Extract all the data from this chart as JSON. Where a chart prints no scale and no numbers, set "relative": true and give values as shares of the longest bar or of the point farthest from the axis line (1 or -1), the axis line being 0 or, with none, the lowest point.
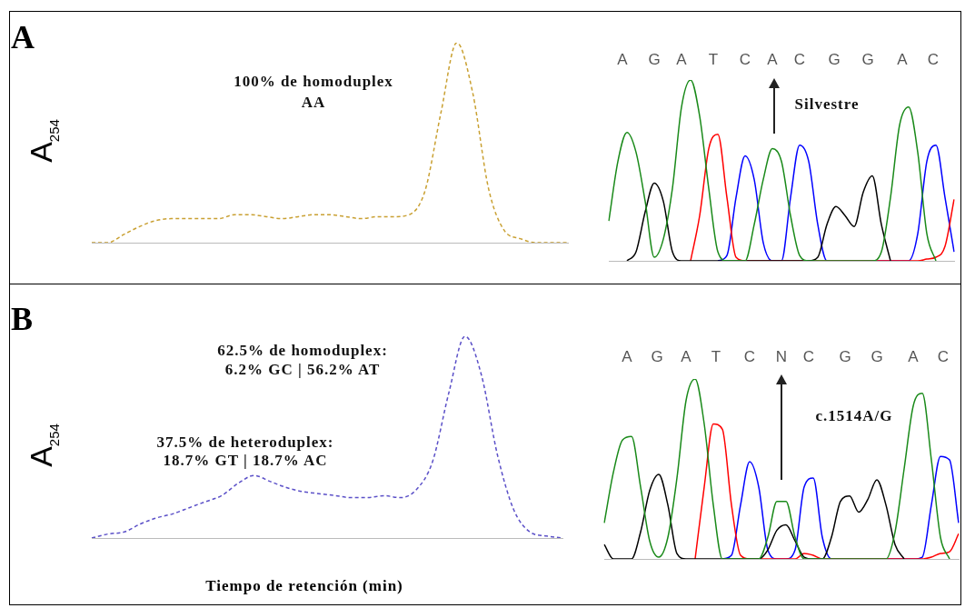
{
  "chart_data": [
    {
      "type": "line",
      "relative": true,
      "legend": false,
      "grid": false,
      "tick_labels": false,
      "marker": "none",
      "line_style": "dashed",
      "ylabel": "A$_{254}$",
      "annotations": [
        "A",
        "100% de homoduplex",
        "AA"
      ],
      "categories": [
        null,
        null,
        null,
        null,
        null,
        null,
        null,
        null,
        null,
        null,
        null,
        null,
        null,
        null,
        null,
        null,
        null,
        null,
        null,
        null,
        null,
        null,
        null,
        null,
        null,
        null,
        null,
        null,
        null,
        null,
        null
      ],
      "series": [
        {
          "color": "#c9a032",
          "values": [
            0,
            0,
            0.04,
            0.08,
            0.11,
            0.12,
            0.12,
            0.12,
            0.12,
            0.14,
            0.14,
            0.13,
            0.12,
            0.13,
            0.14,
            0.14,
            0.13,
            0.12,
            0.13,
            0.13,
            0.14,
            0.26,
            0.65,
            1,
            0.75,
            0.27,
            0.06,
            0.02,
            0,
            0,
            0
          ]
        }
      ]
    },
    {
      "type": "line",
      "relative": true,
      "legend": false,
      "grid": false,
      "tick_labels": false,
      "marker": "none",
      "line_style": "solid",
      "annotations": [
        "A",
        "G",
        "A",
        "T",
        "C",
        "A",
        "C",
        "G",
        "G",
        "A",
        "C",
        "Silvestre"
      ],
      "categories": [
        null,
        null,
        null,
        null,
        null,
        null,
        null,
        null,
        null,
        null,
        null,
        null,
        null,
        null,
        null,
        null,
        null,
        null,
        null,
        null,
        null,
        null,
        null,
        null,
        null,
        null,
        null,
        null,
        null,
        null,
        null,
        null,
        null,
        null,
        null,
        null,
        null,
        null,
        null
      ],
      "series": [
        {
          "color": "#1a8a1a",
          "values": [
            0.22,
            0.55,
            0.71,
            0.6,
            0.33,
            0.02,
            0.12,
            0.4,
            0.85,
            1,
            0.8,
            0.4,
            0.05,
            0,
            null,
            0,
            0.2,
            0.45,
            0.62,
            0.55,
            0.25,
            0.03,
            0,
            null,
            null,
            null,
            null,
            null,
            null,
            0,
            0.05,
            0.35,
            0.75,
            0.85,
            0.6,
            0.15,
            0,
            null,
            null
          ]
        },
        {
          "color": "#000000",
          "values": [
            null,
            null,
            0,
            0.05,
            0.27,
            0.43,
            0.33,
            0.05,
            0,
            null,
            null,
            null,
            null,
            null,
            null,
            null,
            null,
            null,
            null,
            null,
            null,
            null,
            0,
            0.02,
            0.2,
            0.3,
            0.25,
            0.19,
            0.38,
            0.47,
            0.2,
            0,
            null,
            null,
            null,
            null,
            null,
            null,
            null
          ]
        },
        {
          "color": "#ff0000",
          "values": [
            null,
            null,
            null,
            null,
            null,
            null,
            null,
            null,
            null,
            0,
            0.25,
            0.62,
            0.7,
            0.35,
            0.02,
            0,
            null,
            null,
            null,
            null,
            null,
            null,
            null,
            null,
            null,
            null,
            null,
            null,
            null,
            null,
            null,
            null,
            null,
            null,
            0,
            0.01,
            0.02,
            0.08,
            0.34
          ]
        },
        {
          "color": "#0000ff",
          "values": [
            null,
            null,
            null,
            null,
            null,
            null,
            null,
            null,
            null,
            null,
            null,
            null,
            0,
            0.03,
            0.35,
            0.58,
            0.45,
            0.1,
            0,
            0,
            0.35,
            0.64,
            0.55,
            0.2,
            0,
            null,
            null,
            null,
            null,
            null,
            null,
            null,
            null,
            0,
            0.15,
            0.55,
            0.64,
            0.35,
            0.05
          ]
        }
      ]
    },
    {
      "type": "line",
      "relative": true,
      "legend": false,
      "grid": false,
      "tick_labels": false,
      "marker": "none",
      "line_style": "dashed",
      "ylabel": "A$_{254}$",
      "xlabel": "Tiempo de retención (min)",
      "annotations": [
        "B",
        "62.5% de homoduplex:",
        "6.2% GC | 56.2% AT",
        "37.5% de heteroduplex:",
        "18.7% GT | 18.7% AC"
      ],
      "categories": [
        null,
        null,
        null,
        null,
        null,
        null,
        null,
        null,
        null,
        null,
        null,
        null,
        null,
        null,
        null,
        null,
        null,
        null,
        null,
        null,
        null,
        null,
        null,
        null,
        null,
        null,
        null,
        null,
        null,
        null
      ],
      "series": [
        {
          "color": "#5b50c8",
          "values": [
            0,
            0.02,
            0.03,
            0.07,
            0.1,
            0.12,
            0.15,
            0.18,
            0.21,
            0.27,
            0.31,
            0.28,
            0.25,
            0.23,
            0.22,
            0.21,
            0.2,
            0.2,
            0.21,
            0.2,
            0.24,
            0.38,
            0.72,
            1,
            0.81,
            0.41,
            0.14,
            0.03,
            0.01,
            0
          ]
        }
      ]
    },
    {
      "type": "line",
      "relative": true,
      "legend": false,
      "grid": false,
      "tick_labels": false,
      "marker": "none",
      "line_style": "solid",
      "annotations": [
        "A",
        "G",
        "A",
        "T",
        "C",
        "N",
        "C",
        "G",
        "G",
        "A",
        "C",
        "c.1514A/G"
      ],
      "categories": [
        null,
        null,
        null,
        null,
        null,
        null,
        null,
        null,
        null,
        null,
        null,
        null,
        null,
        null,
        null,
        null,
        null,
        null,
        null,
        null,
        null,
        null,
        null,
        null,
        null,
        null,
        null,
        null,
        null,
        null,
        null,
        null,
        null,
        null,
        null,
        null,
        null,
        null,
        null,
        null
      ],
      "series": [
        {
          "color": "#1a8a1a",
          "values": [
            0.2,
            0.48,
            0.66,
            0.68,
            0.4,
            0.1,
            0.01,
            0.12,
            0.45,
            0.88,
            1,
            0.75,
            0.3,
            0,
            null,
            null,
            null,
            0,
            0.12,
            0.32,
            0.32,
            0.12,
            0,
            null,
            null,
            null,
            null,
            null,
            null,
            null,
            null,
            0,
            0.15,
            0.5,
            0.85,
            0.92,
            0.55,
            0.12,
            0,
            null
          ]
        },
        {
          "color": "#000000",
          "values": [
            0.08,
            0,
            null,
            0,
            0.15,
            0.38,
            0.47,
            0.3,
            0.03,
            0,
            null,
            null,
            null,
            null,
            null,
            null,
            null,
            0,
            0.05,
            0.16,
            0.19,
            0.1,
            0.01,
            0,
            0,
            0.12,
            0.32,
            0.35,
            0.26,
            0.33,
            0.44,
            0.3,
            0.08,
            0,
            null,
            null,
            null,
            null,
            null,
            null
          ]
        },
        {
          "color": "#ff0000",
          "values": [
            null,
            null,
            null,
            null,
            null,
            null,
            null,
            null,
            null,
            null,
            0,
            0.4,
            0.75,
            0.72,
            0.3,
            0.02,
            0,
            null,
            null,
            null,
            null,
            0,
            0.03,
            0.02,
            0,
            null,
            null,
            null,
            null,
            null,
            null,
            null,
            null,
            null,
            null,
            0,
            0.01,
            0.03,
            0.04,
            0.14
          ]
        },
        {
          "color": "#0000ff",
          "values": [
            null,
            null,
            null,
            null,
            null,
            null,
            null,
            null,
            null,
            null,
            null,
            null,
            null,
            0,
            0.02,
            0.3,
            0.54,
            0.4,
            0.05,
            0,
            0,
            0.05,
            0.4,
            0.45,
            0.12,
            0,
            null,
            null,
            null,
            null,
            null,
            null,
            null,
            null,
            0,
            0.01,
            0.3,
            0.57,
            0.55,
            0.2
          ]
        }
      ]
    }
  ]
}
